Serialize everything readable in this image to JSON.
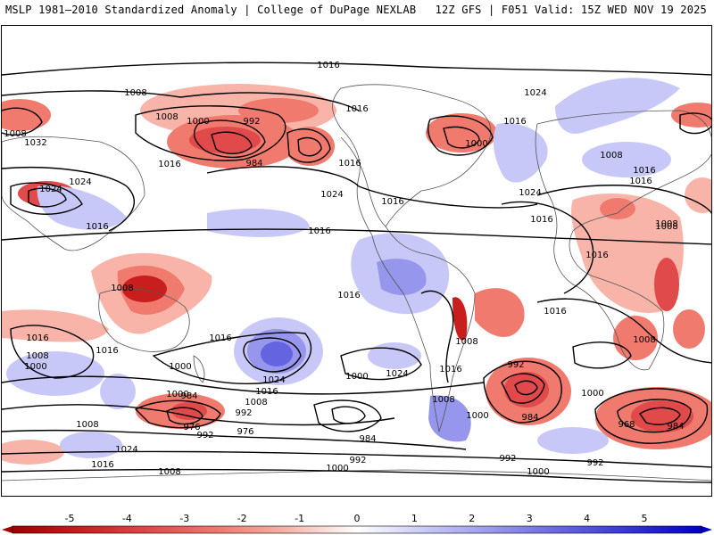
{
  "header": {
    "left_title": "MSLP 1981–2010 Standardized Anomaly | College of DuPage NEXLAB",
    "right_title": "12Z GFS | F051 Valid: 15Z WED NOV 19 2025"
  },
  "colorbar": {
    "ticks": [
      "-5",
      "-4",
      "-3",
      "-2",
      "-1",
      "0",
      "1",
      "2",
      "3",
      "4",
      "5"
    ],
    "colors": [
      "#a00000",
      "#c81e1e",
      "#e04a4a",
      "#f07a6e",
      "#f8b4a8",
      "#ffffff",
      "#c8c8f8",
      "#9696ec",
      "#6464e0",
      "#3232d4",
      "#0000c0"
    ]
  },
  "contour_labels": [
    "1016",
    "1008",
    "1024",
    "992",
    "1000",
    "1008",
    "1016",
    "984",
    "1016",
    "1008",
    "1032",
    "1024",
    "1016",
    "1024",
    "1016",
    "1000",
    "1016",
    "1016",
    "1024",
    "1016",
    "1016",
    "1024",
    "1016",
    "1008",
    "1008",
    "1016",
    "1016",
    "1016",
    "1008",
    "1016",
    "1000",
    "1008",
    "1000",
    "1016",
    "1024",
    "1016",
    "1000",
    "1024",
    "1008",
    "1016",
    "1000",
    "1016",
    "992",
    "1000",
    "984",
    "1000",
    "1008",
    "984",
    "992",
    "976",
    "992",
    "1008",
    "1024",
    "1016",
    "1008",
    "976",
    "984",
    "1000",
    "992",
    "992",
    "1000",
    "968",
    "984",
    "1016",
    "1008",
    "1008",
    "1008",
    "992"
  ]
}
